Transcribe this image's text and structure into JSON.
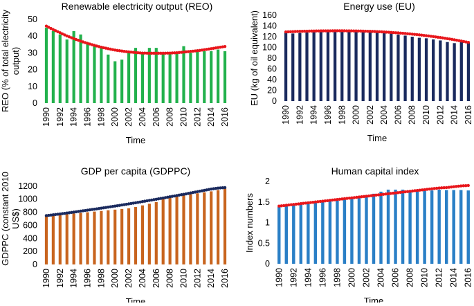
{
  "chart_data": [
    {
      "id": "reo",
      "type": "bar",
      "title": "Renewable electricity output (REO)",
      "xlabel": "Time",
      "ylabel": "REO (% of total electricity output)",
      "ylabel_lines": [
        "REO (% of total electricity",
        "output)"
      ],
      "ylim": [
        0,
        50
      ],
      "yticks": [
        0,
        10,
        20,
        30,
        40,
        50
      ],
      "xtick_labels": [
        "1990",
        "1992",
        "1994",
        "1996",
        "1998",
        "2000",
        "2002",
        "2004",
        "2006",
        "2008",
        "2010",
        "2012",
        "2014",
        "2016"
      ],
      "categories": [
        "1990",
        "1991",
        "1992",
        "1993",
        "1994",
        "1995",
        "1996",
        "1997",
        "1998",
        "1999",
        "2000",
        "2001",
        "2002",
        "2003",
        "2004",
        "2005",
        "2006",
        "2007",
        "2008",
        "2009",
        "2010",
        "2011",
        "2012",
        "2013",
        "2014",
        "2015",
        "2016"
      ],
      "values": [
        45,
        43,
        41,
        38,
        43,
        41,
        36,
        34,
        34,
        29,
        25,
        26,
        30,
        33,
        30,
        33,
        33,
        30,
        30,
        30,
        34,
        30,
        32,
        31,
        31,
        32,
        31
      ],
      "bar_color": "#22b14c",
      "trend": {
        "type": "polynomial",
        "color": "#e8161b",
        "values": [
          46,
          43.9,
          42,
          40.1,
          38.5,
          37,
          35.7,
          34.5,
          33.4,
          32.5,
          31.7,
          31.1,
          30.6,
          30.2,
          29.9,
          29.8,
          29.8,
          29.8,
          29.9,
          30.1,
          30.5,
          30.9,
          31.3,
          31.9,
          32.5,
          33.2,
          33.8
        ]
      }
    },
    {
      "id": "eu",
      "type": "bar",
      "title": "Energy use (EU)",
      "xlabel": "Time",
      "ylabel": "EU (kg of oil equivalent)",
      "ylabel_lines": [
        "EU (kg of oil equivalent)"
      ],
      "ylim": [
        0,
        160
      ],
      "yticks": [
        0,
        20,
        40,
        60,
        80,
        100,
        120,
        140,
        160
      ],
      "xtick_labels": [
        "1990",
        "1992",
        "1994",
        "1996",
        "1998",
        "2000",
        "2002",
        "2004",
        "2006",
        "2008",
        "2010",
        "2012",
        "2014",
        "2016"
      ],
      "categories": [
        "1990",
        "1991",
        "1992",
        "1993",
        "1994",
        "1995",
        "1996",
        "1997",
        "1998",
        "1999",
        "2000",
        "2001",
        "2002",
        "2003",
        "2004",
        "2005",
        "2006",
        "2007",
        "2008",
        "2009",
        "2010",
        "2011",
        "2012",
        "2013",
        "2014",
        "2015",
        "2016"
      ],
      "values": [
        128,
        126,
        127,
        128,
        130,
        130,
        131,
        131,
        131,
        130,
        132,
        131,
        130,
        128,
        127,
        126,
        124,
        122,
        120,
        118,
        117,
        115,
        113,
        110,
        108,
        110,
        110
      ],
      "bar_color": "#1a2a5e",
      "trend": {
        "type": "polynomial",
        "color": "#e8161b",
        "values": [
          129,
          129.5,
          130,
          130.3,
          130.6,
          130.8,
          130.9,
          131,
          131,
          130.9,
          130.7,
          130.4,
          130,
          129.5,
          128.8,
          128,
          127.1,
          126,
          124.8,
          123.4,
          121.9,
          120.2,
          118.4,
          116.4,
          114.3,
          111.9,
          109.5
        ]
      }
    },
    {
      "id": "gdppc",
      "type": "bar",
      "title": "GDP per capita (GDPPC)",
      "xlabel": "Time",
      "ylabel": "GDPPC (constant 2010 US$)",
      "ylabel_lines": [
        "GDPPC (constant 2010",
        "US$)"
      ],
      "ylim": [
        0,
        1400
      ],
      "yticks": [
        0,
        200,
        400,
        600,
        800,
        1000,
        1200
      ],
      "xtick_labels": [
        "1990",
        "1992",
        "1994",
        "1996",
        "1998",
        "2000",
        "2002",
        "2004",
        "2006",
        "2008",
        "2010",
        "2012",
        "2014",
        "2016"
      ],
      "categories": [
        "1990",
        "1991",
        "1992",
        "1993",
        "1994",
        "1995",
        "1996",
        "1997",
        "1998",
        "1999",
        "2000",
        "2001",
        "2002",
        "2003",
        "2004",
        "2005",
        "2006",
        "2007",
        "2008",
        "2009",
        "2010",
        "2011",
        "2012",
        "2013",
        "2014",
        "2015",
        "2016"
      ],
      "values": [
        745,
        750,
        760,
        770,
        780,
        790,
        800,
        810,
        820,
        830,
        840,
        850,
        860,
        880,
        905,
        930,
        955,
        1010,
        1040,
        1050,
        1060,
        1075,
        1090,
        1105,
        1120,
        1140,
        1165
      ],
      "bar_color": "#c8641e",
      "trend": {
        "type": "polynomial",
        "color": "#1a2a5e",
        "values": [
          748,
          761,
          774,
          788,
          802,
          817,
          832,
          847,
          862,
          878,
          894,
          911,
          928,
          945,
          963,
          981,
          999,
          1018,
          1037,
          1056,
          1075,
          1095,
          1115,
          1135,
          1155,
          1170,
          1178
        ]
      }
    },
    {
      "id": "hci",
      "type": "bar",
      "title": "Human capital index",
      "xlabel": "Time",
      "ylabel": "Index numbers",
      "ylabel_lines": [
        "Index numbers"
      ],
      "ylim": [
        0,
        2
      ],
      "yticks": [
        0,
        0.5,
        1,
        1.5,
        2
      ],
      "xtick_labels": [
        "1990",
        "1992",
        "1994",
        "1996",
        "1998",
        "2000",
        "2002",
        "2004",
        "2006",
        "2008",
        "2010",
        "2012",
        "2014",
        "2016"
      ],
      "categories": [
        "1990",
        "1991",
        "1992",
        "1993",
        "1994",
        "1995",
        "1996",
        "1997",
        "1998",
        "1999",
        "2000",
        "2001",
        "2002",
        "2003",
        "2004",
        "2005",
        "2006",
        "2007",
        "2008",
        "2009",
        "2010",
        "2011",
        "2012",
        "2013",
        "2014",
        "2015",
        "2016"
      ],
      "values": [
        1.38,
        1.4,
        1.42,
        1.44,
        1.46,
        1.48,
        1.5,
        1.52,
        1.54,
        1.56,
        1.58,
        1.6,
        1.65,
        1.7,
        1.75,
        1.8,
        1.8,
        1.8,
        1.78,
        1.78,
        1.78,
        1.78,
        1.8,
        1.79,
        1.79,
        1.79,
        1.78
      ],
      "bar_color": "#2a7fc6",
      "trend": {
        "type": "polynomial",
        "color": "#e8161b",
        "values": [
          1.4,
          1.42,
          1.44,
          1.46,
          1.48,
          1.5,
          1.52,
          1.54,
          1.56,
          1.58,
          1.6,
          1.62,
          1.64,
          1.66,
          1.68,
          1.7,
          1.72,
          1.74,
          1.76,
          1.78,
          1.8,
          1.82,
          1.84,
          1.85,
          1.87,
          1.89,
          1.9
        ]
      }
    }
  ]
}
